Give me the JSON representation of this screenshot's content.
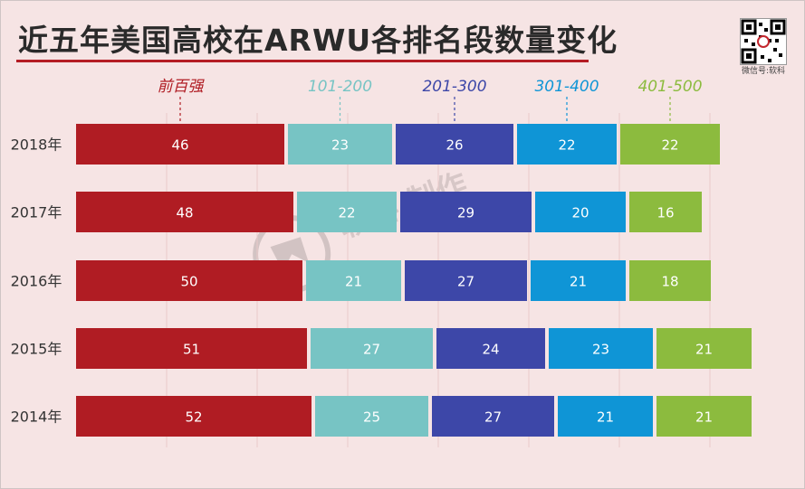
{
  "title": "近五年美国高校在ARWU各排名段数量变化",
  "watermark": {
    "text": "软科 制作"
  },
  "qr": {
    "caption": "微信号:软科"
  },
  "chart_data": {
    "type": "bar",
    "stacked": true,
    "orientation": "horizontal",
    "categories": [
      "2018年",
      "2017年",
      "2016年",
      "2015年",
      "2014年"
    ],
    "series": [
      {
        "name": "前百强",
        "color": "#b01c23",
        "label_color": "#b01c23",
        "values": [
          46,
          48,
          50,
          51,
          52
        ]
      },
      {
        "name": "101-200",
        "color": "#77c4c4",
        "label_color": "#77c4c4",
        "values": [
          23,
          22,
          21,
          27,
          25
        ]
      },
      {
        "name": "201-300",
        "color": "#3d47a8",
        "label_color": "#3d47a8",
        "values": [
          26,
          29,
          27,
          24,
          27
        ]
      },
      {
        "name": "301-400",
        "color": "#0f95d6",
        "label_color": "#0f95d6",
        "values": [
          22,
          20,
          21,
          23,
          21
        ]
      },
      {
        "name": "401-500",
        "color": "#8cbb3e",
        "label_color": "#8cbb3e",
        "values": [
          22,
          16,
          18,
          21,
          21
        ]
      }
    ],
    "legend_position": "top",
    "grid": true
  }
}
